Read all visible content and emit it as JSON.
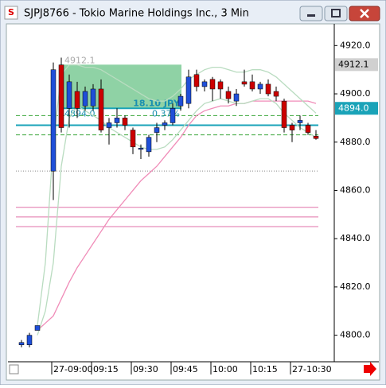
{
  "chart_data": {
    "type": "candlestick",
    "title": "SJPJ8766 - Tokio Marine Holdings Inc., 3 Min",
    "categories": [
      null,
      null,
      null,
      null,
      "27-09:00",
      null,
      null,
      null,
      null,
      "09:15",
      null,
      null,
      null,
      null,
      "09:30",
      null,
      null,
      null,
      null,
      "09:45",
      null,
      null,
      null,
      null,
      "10:00",
      null,
      null,
      null,
      null,
      "10:15",
      null,
      null,
      null,
      null,
      "27-10:30",
      null,
      null,
      null
    ],
    "open": [
      4796,
      4796,
      4802,
      null,
      4868,
      4912,
      4894,
      4901,
      4895,
      4895,
      4902,
      4886,
      4888,
      4890,
      4885,
      4877,
      4876,
      4884,
      4887,
      4888,
      4895,
      4896,
      4908,
      4903,
      4906,
      4905,
      4901,
      4897,
      4905,
      4905,
      4902,
      4904,
      4901,
      4897,
      4887,
      4888,
      4887,
      4882.5
    ],
    "high": [
      4798,
      4801,
      4804,
      null,
      4913,
      4915,
      4908,
      4905,
      4903,
      4904,
      4906,
      4890,
      4894,
      4891,
      4886,
      4879,
      4883,
      4888,
      4889,
      4896,
      4900,
      4910,
      4910,
      4906,
      4907,
      4906,
      4903,
      4902,
      4910,
      4908,
      4905,
      4906,
      4903,
      4898,
      4888,
      4891,
      4888,
      4885
    ],
    "low": [
      4795,
      4795,
      4802,
      null,
      4856,
      4884,
      4886,
      4890,
      4893,
      4893,
      4884,
      4879,
      4886,
      4885,
      4875,
      4873,
      4874,
      4880,
      4885,
      4887,
      4893,
      4894,
      4901,
      4901,
      4897,
      4898,
      4896,
      4895,
      4903,
      4901,
      4900,
      4899,
      4897,
      4884,
      4880,
      4885,
      4883,
      4881
    ],
    "close": [
      4797,
      4800,
      4804,
      null,
      4910,
      4886,
      4905,
      4894,
      4901,
      4902,
      4885,
      4888,
      4890,
      4887,
      4878,
      4877.5,
      4882,
      4886,
      4888,
      4894,
      4899,
      4907,
      4903,
      4905,
      4902,
      4902,
      4898,
      4900,
      4904,
      4902,
      4904,
      4900,
      4899,
      4886,
      4885,
      4889,
      4884,
      4881.5
    ],
    "up_color": "#1f4fd8",
    "down_color": "#cc0000",
    "overlays": [
      {
        "color": "#f08cb8",
        "values": [
          null,
          null,
          4802,
          4805,
          4808,
          4815,
          4822,
          4828,
          4833,
          4838,
          4843,
          4848,
          4852,
          4856,
          4860,
          4864,
          4867,
          4870,
          4874,
          4878,
          4882,
          4887,
          4891,
          4893,
          4894,
          4895,
          4895,
          4896,
          4896,
          4897,
          4897,
          4897,
          4897,
          4897,
          4897,
          4897,
          4897,
          4896
        ]
      },
      {
        "color": "#b9dcc0",
        "values": [
          null,
          null,
          4804,
          4830,
          4880,
          4908,
          4912,
          4912,
          4911,
          4911,
          4910,
          4908,
          4906,
          4904,
          4902,
          4900,
          4898,
          4897,
          4897,
          4899,
          4902,
          4906,
          4908,
          4910,
          4911,
          4911,
          4910,
          4909,
          4909,
          4910,
          4910,
          4909,
          4907,
          4904,
          4901,
          4898,
          4895,
          4892
        ]
      },
      {
        "color": "#b9dcc0",
        "values": [
          null,
          null,
          4800,
          4810,
          4830,
          4870,
          4890,
          4895,
          4893,
          4891,
          4889,
          4886,
          4884,
          4882,
          4880,
          4878,
          4877,
          4877,
          4878,
          4881,
          4885,
          4889,
          4893,
          4896,
          4897,
          4898,
          4897,
          4896,
          4896,
          4897,
          4898,
          4898,
          4896,
          4892,
          4889,
          4886,
          4884,
          4882
        ]
      }
    ],
    "hlines": [
      {
        "value": 4891,
        "color": "#3aa63a",
        "style": "dashed"
      },
      {
        "value": 4883,
        "color": "#3aa63a",
        "style": "dashed"
      },
      {
        "value": 4887,
        "color": "#1aa3b8",
        "style": "solid"
      },
      {
        "value": 4868,
        "color": "#888888",
        "style": "dotted"
      },
      {
        "value": 4853,
        "color": "#e070a8",
        "style": "solid"
      },
      {
        "value": 4849,
        "color": "#e070a8",
        "style": "solid"
      },
      {
        "value": 4845,
        "color": "#e070a8",
        "style": "solid"
      }
    ],
    "measure": {
      "high": 4912.1,
      "low": {
        "value": 4894,
        "label": "4894.0"
      },
      "change_label": "18.10 JPY",
      "pct_label": "0.37%"
    },
    "price_markers": [
      {
        "value": 4912.1,
        "color": "#d0d0d0"
      },
      {
        "value": 4894,
        "label": "4894.0",
        "color": "#1aa3b8"
      }
    ],
    "ylim": [
      4789,
      4929
    ],
    "yticks": [
      {
        "value": 4800,
        "label": "4800.0"
      },
      {
        "value": 4820,
        "label": "4820.0"
      },
      {
        "value": 4840,
        "label": "4840.0"
      },
      {
        "value": 4860,
        "label": "4860.0"
      },
      {
        "value": 4880,
        "label": "4880.0"
      },
      {
        "value": 4900,
        "label": "4900.0"
      },
      {
        "value": 4920,
        "label": "4920.0"
      }
    ]
  }
}
